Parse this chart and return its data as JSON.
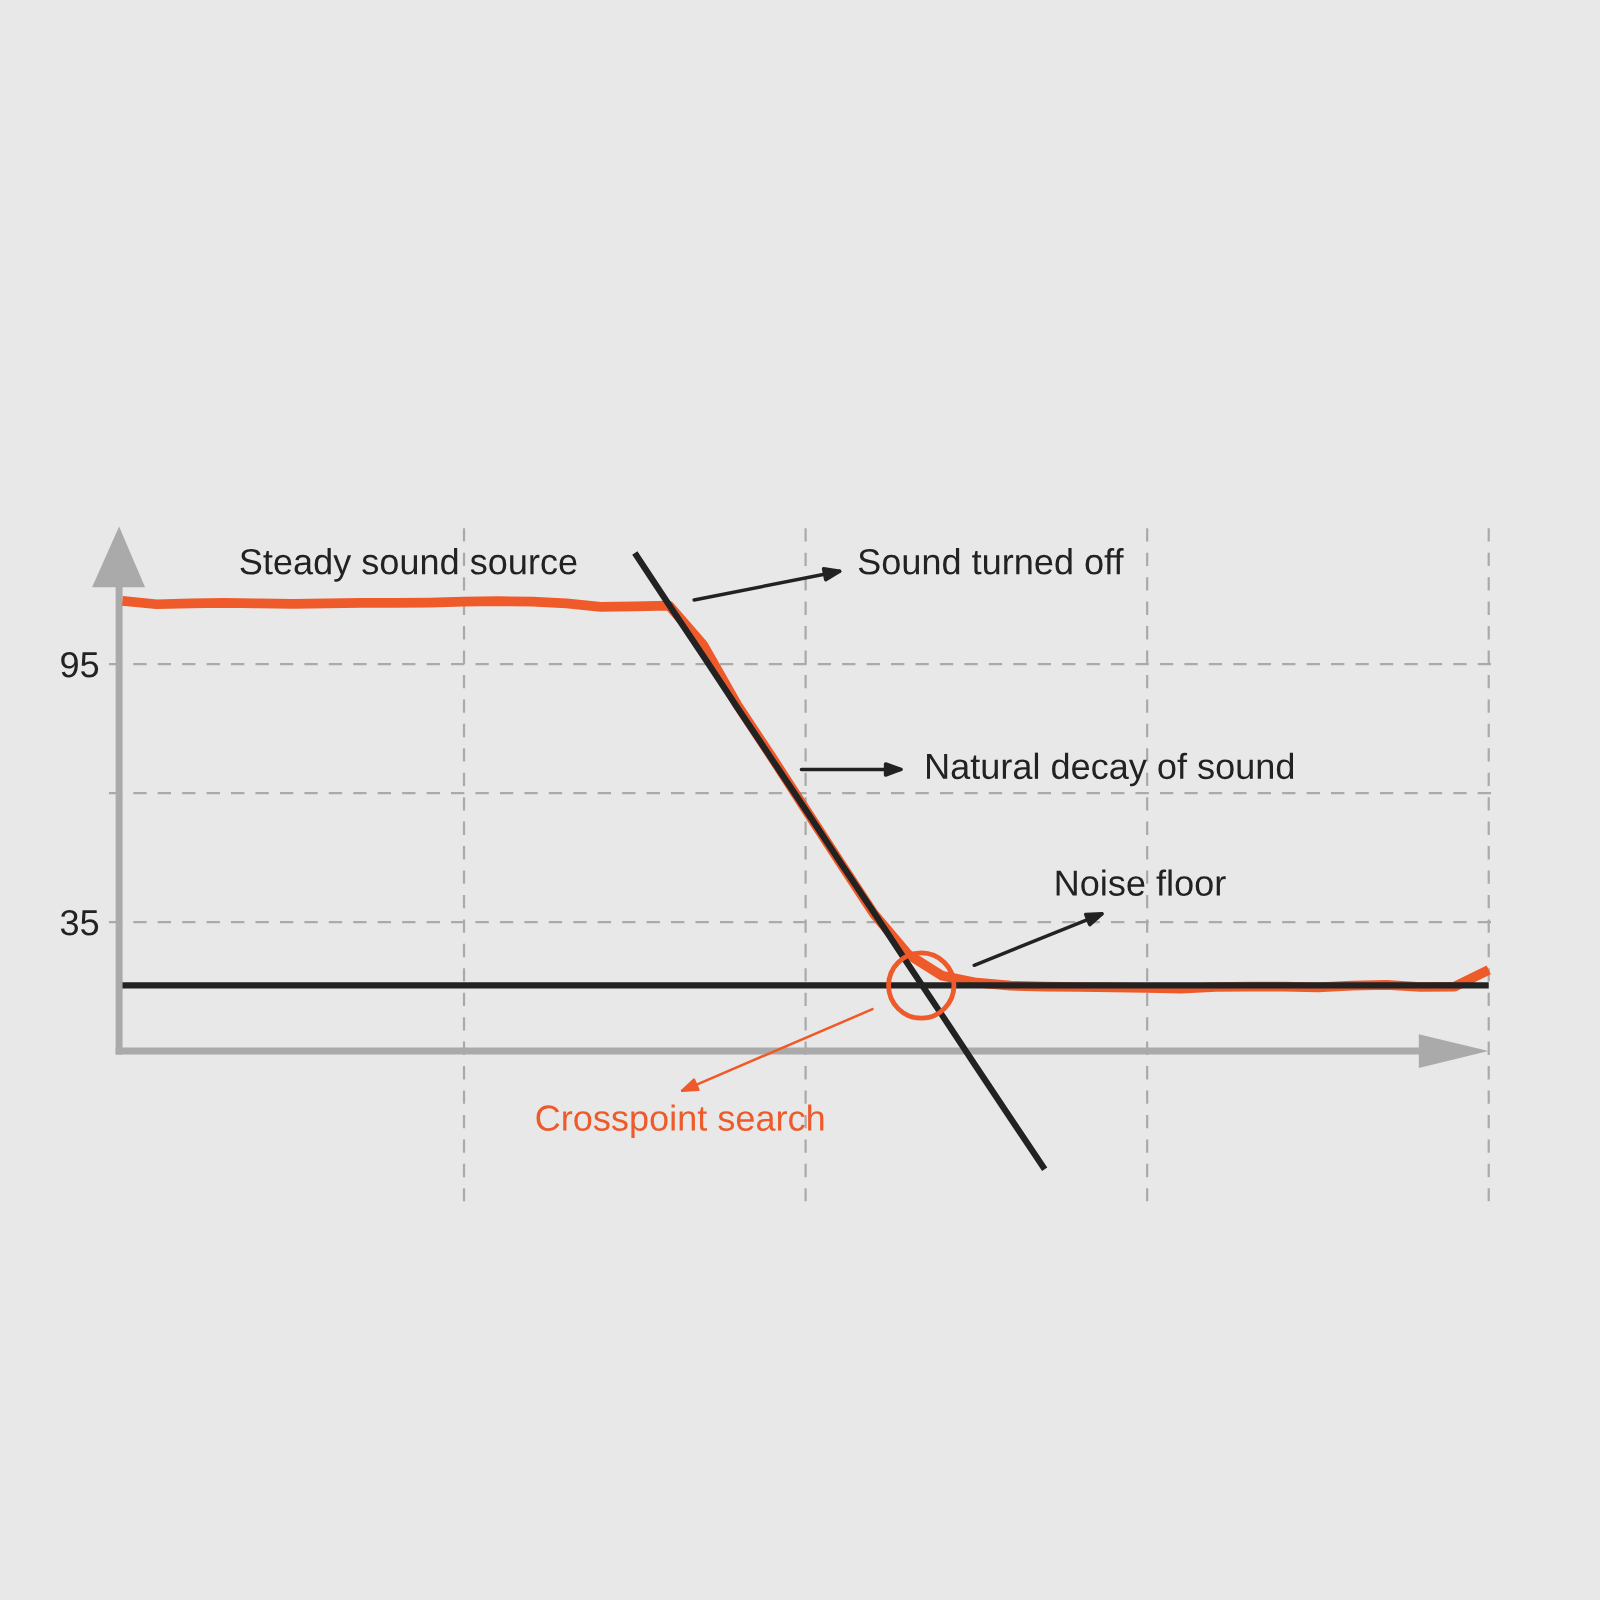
{
  "chart_data": {
    "type": "line",
    "categories": [
      null,
      null,
      null,
      null,
      null,
      null,
      null,
      null,
      null,
      null,
      null,
      null,
      null,
      null,
      null,
      null,
      null,
      null,
      null,
      null,
      null,
      null,
      null,
      null,
      null,
      null,
      null,
      null,
      null,
      null,
      null,
      null,
      null,
      null,
      null,
      null,
      null,
      null,
      null,
      null,
      null
    ],
    "series": [
      {
        "color": "#ee5a2a",
        "values": [
          109.7,
          108.9,
          109.1,
          109.2,
          109.1,
          109.0,
          109.1,
          109.2,
          109.2,
          109.3,
          109.5,
          109.6,
          109.5,
          109.1,
          108.3,
          108.4,
          108.6,
          99.5,
          85.5,
          73.5,
          61.2,
          49.0,
          36.9,
          27.5,
          22.5,
          20.9,
          20.2,
          20.0,
          19.9,
          19.8,
          19.7,
          19.5,
          19.9,
          20.0,
          20.0,
          19.8,
          20.2,
          20.4,
          19.9,
          20.0,
          23.9
        ]
      },
      {
        "color": "#222222",
        "values": [
          null,
          null,
          null,
          null,
          null,
          null,
          null,
          null,
          null,
          null,
          null,
          null,
          null,
          null,
          null,
          120.8,
          108.8,
          96.9,
          84.9,
          73.0,
          61.1,
          49.1,
          37.2,
          25.2,
          13.3,
          1.3,
          -10.6,
          -22.5,
          null,
          null,
          null,
          null,
          null,
          null,
          null,
          null,
          null,
          null,
          null,
          null,
          null
        ]
      },
      {
        "color": "#222222",
        "values": [
          20.3,
          20.3,
          20.3,
          20.3,
          20.3,
          20.3,
          20.3,
          20.3,
          20.3,
          20.3,
          20.3,
          20.3,
          20.3,
          20.3,
          20.3,
          20.3,
          20.3,
          20.3,
          20.3,
          20.3,
          20.3,
          20.3,
          20.3,
          20.3,
          20.3,
          20.3,
          20.3,
          20.3,
          20.3,
          20.3,
          20.3,
          20.3,
          20.3,
          20.3,
          20.3,
          20.3,
          20.3,
          20.3,
          20.3,
          20.3,
          20.3
        ]
      }
    ],
    "ylim": [
      -30,
      127
    ],
    "yticks": [
      35,
      {
        "value": 65,
        "label": null
      },
      95
    ],
    "ref_lines": [
      {
        "axis": "y",
        "value": 5,
        "color": "#aaaaaa"
      }
    ],
    "tick_labels": "y",
    "grid": true,
    "line_style": "solid",
    "marker": "none",
    "annotations": [
      "Steady sound source",
      "Sound turned off",
      "Natural decay of sound",
      "Noise floor",
      "Crosspoint search"
    ]
  }
}
